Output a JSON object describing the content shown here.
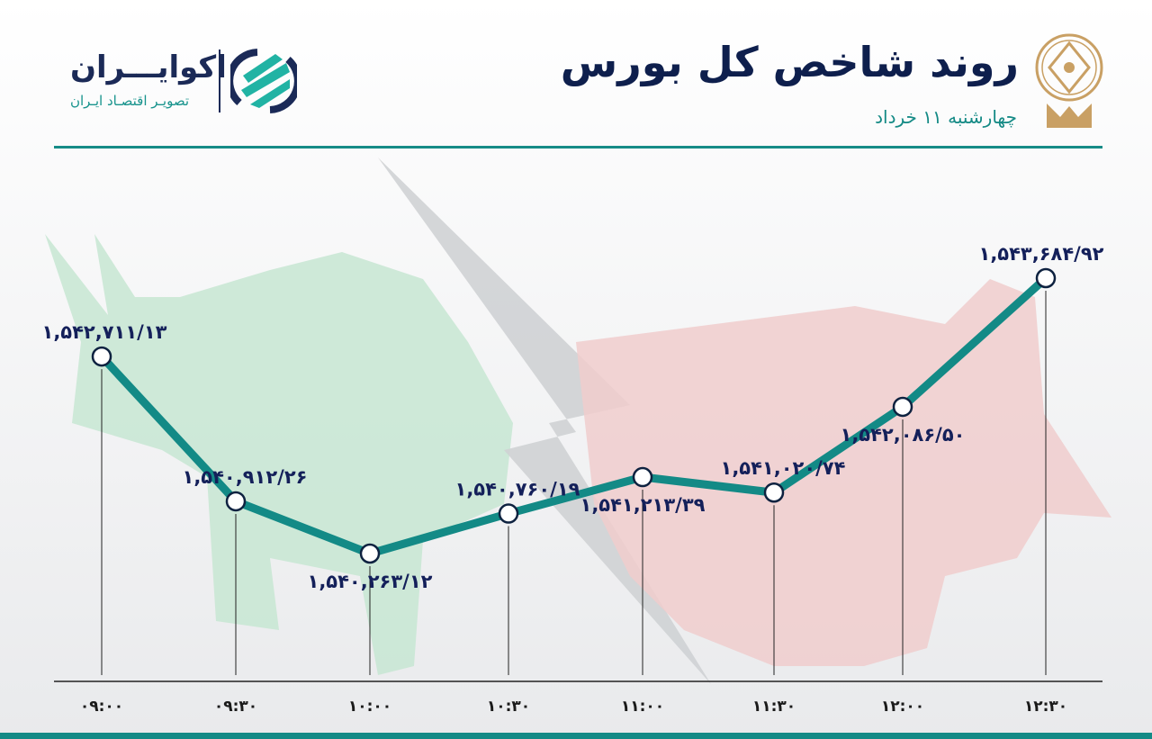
{
  "header": {
    "title": "روند شاخص کل بورس",
    "subtitle": "چهارشنبه ۱۱ خرداد",
    "brand_name": "اکوایـــران",
    "brand_tagline": "تصویـر اقتصـاد ایـران",
    "emblem": "tehran-stock-exchange-emblem"
  },
  "colors": {
    "line": "#138a86",
    "label": "#14205a",
    "accent": "#138a86",
    "bull": "#bfe3cc",
    "bear": "#f2c8c8"
  },
  "chart_data": {
    "type": "line",
    "title": "روند شاخص کل بورس",
    "xlabel": "",
    "ylabel": "",
    "categories": [
      "۰۹:۰۰",
      "۰۹:۳۰",
      "۱۰:۰۰",
      "۱۰:۳۰",
      "۱۱:۰۰",
      "۱۱:۳۰",
      "۱۲:۰۰",
      "۱۲:۳۰"
    ],
    "x": [
      "09:00",
      "09:30",
      "10:00",
      "10:30",
      "11:00",
      "11:30",
      "12:00",
      "12:30"
    ],
    "values": [
      1542711.13,
      1540912.26,
      1540263.12,
      1540760.19,
      1541213.39,
      1541020.74,
      1542086.5,
      1543684.92
    ],
    "labels": [
      "۱,۵۴۲,۷۱۱/۱۳",
      "۱,۵۴۰,۹۱۲/۲۶",
      "۱,۵۴۰,۲۶۳/۱۲",
      "۱,۵۴۰,۷۶۰/۱۹",
      "۱,۵۴۱,۲۱۳/۳۹",
      "۱,۵۴۱,۰۲۰/۷۴",
      "۱,۵۴۲,۰۸۶/۵۰",
      "۱,۵۴۳,۶۸۴/۹۲"
    ],
    "grid": false,
    "legend": "none"
  }
}
